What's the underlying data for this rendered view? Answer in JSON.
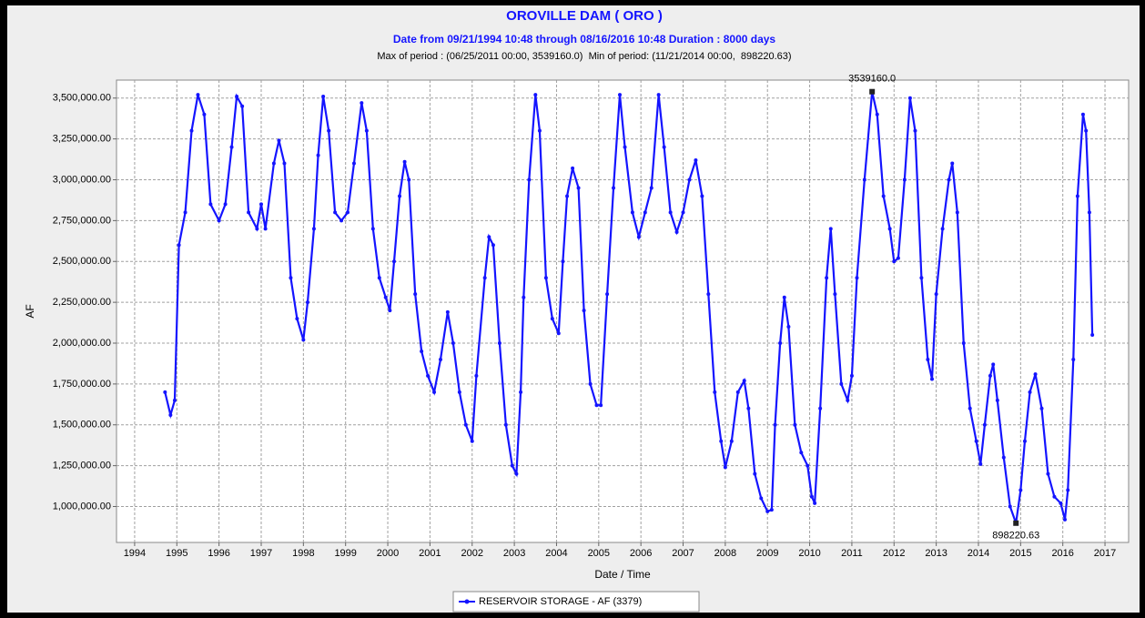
{
  "chart_data": {
    "type": "line",
    "title": "OROVILLE DAM ( ORO )",
    "subtitle": "Date from 09/21/1994 10:48 through 08/16/2016 10:48 Duration : 8000 days",
    "note": "Max of period : (06/25/2011 00:00, 3539160.0)  Min of period: (11/21/2014 00:00,  898220.63)",
    "x_label": "Date / Time",
    "y_label": "AF",
    "xlim": [
      1993.57,
      2017.56
    ],
    "xticks": [
      1994,
      1995,
      1996,
      1997,
      1998,
      1999,
      2000,
      2001,
      2002,
      2003,
      2004,
      2005,
      2006,
      2007,
      2008,
      2009,
      2010,
      2011,
      2012,
      2013,
      2014,
      2015,
      2016,
      2017
    ],
    "ylim": [
      780000,
      3610000
    ],
    "yticks": [
      {
        "value": 1000000,
        "label": "1,000,000.00"
      },
      {
        "value": 1250000,
        "label": "1,250,000.00"
      },
      {
        "value": 1500000,
        "label": "1,500,000.00"
      },
      {
        "value": 1750000,
        "label": "1,750,000.00"
      },
      {
        "value": 2000000,
        "label": "2,000,000.00"
      },
      {
        "value": 2250000,
        "label": "2,250,000.00"
      },
      {
        "value": 2500000,
        "label": "2,500,000.00"
      },
      {
        "value": 2750000,
        "label": "2,750,000.00"
      },
      {
        "value": 3000000,
        "label": "3,000,000.00"
      },
      {
        "value": 3250000,
        "label": "3,250,000.00"
      },
      {
        "value": 3500000,
        "label": "3,500,000.00"
      }
    ],
    "grid": true,
    "legend": "bottom",
    "annotations": [
      {
        "text": "3539160.0",
        "x": 2011.48,
        "y": 3539160
      },
      {
        "text": "898220.63",
        "x": 2014.89,
        "y": 898220.63
      }
    ],
    "x": [
      1994.72,
      1994.85,
      1994.95,
      1995.05,
      1995.2,
      1995.35,
      1995.5,
      1995.65,
      1995.8,
      1996.0,
      1996.15,
      1996.3,
      1996.42,
      1996.55,
      1996.7,
      1996.9,
      1997.0,
      1997.1,
      1997.3,
      1997.42,
      1997.55,
      1997.7,
      1997.85,
      1998.0,
      1998.1,
      1998.25,
      1998.35,
      1998.47,
      1998.6,
      1998.75,
      1998.9,
      1999.05,
      1999.2,
      1999.38,
      1999.5,
      1999.65,
      1999.8,
      1999.95,
      2000.05,
      2000.15,
      2000.28,
      2000.4,
      2000.5,
      2000.65,
      2000.8,
      2000.95,
      2001.1,
      2001.25,
      2001.42,
      2001.55,
      2001.7,
      2001.85,
      2002.0,
      2002.1,
      2002.3,
      2002.4,
      2002.5,
      2002.65,
      2002.8,
      2002.95,
      2003.05,
      2003.15,
      2003.22,
      2003.35,
      2003.5,
      2003.6,
      2003.75,
      2003.9,
      2004.05,
      2004.15,
      2004.25,
      2004.38,
      2004.52,
      2004.65,
      2004.8,
      2004.95,
      2005.05,
      2005.2,
      2005.35,
      2005.5,
      2005.62,
      2005.8,
      2005.95,
      2006.1,
      2006.25,
      2006.42,
      2006.55,
      2006.7,
      2006.85,
      2007.0,
      2007.15,
      2007.3,
      2007.45,
      2007.6,
      2007.75,
      2007.9,
      2008.0,
      2008.15,
      2008.3,
      2008.45,
      2008.55,
      2008.7,
      2008.85,
      2009.0,
      2009.1,
      2009.18,
      2009.3,
      2009.4,
      2009.5,
      2009.65,
      2009.8,
      2009.95,
      2010.05,
      2010.12,
      2010.25,
      2010.4,
      2010.5,
      2010.6,
      2010.75,
      2010.9,
      2011.0,
      2011.12,
      2011.3,
      2011.48,
      2011.6,
      2011.75,
      2011.9,
      2012.0,
      2012.1,
      2012.25,
      2012.38,
      2012.5,
      2012.65,
      2012.8,
      2012.9,
      2013.0,
      2013.15,
      2013.3,
      2013.38,
      2013.5,
      2013.65,
      2013.8,
      2013.95,
      2014.05,
      2014.15,
      2014.28,
      2014.35,
      2014.45,
      2014.6,
      2014.75,
      2014.89,
      2015.0,
      2015.1,
      2015.22,
      2015.35,
      2015.5,
      2015.65,
      2015.8,
      2015.95,
      2016.05,
      2016.12,
      2016.25,
      2016.35,
      2016.48,
      2016.55,
      2016.63,
      2016.7
    ],
    "series": [
      {
        "name": "RESERVOIR STORAGE - AF (3379)",
        "color": "#1414ff",
        "values": [
          1700000,
          1560000,
          1650000,
          2600000,
          2800000,
          3300000,
          3520000,
          3400000,
          2850000,
          2750000,
          2850000,
          3200000,
          3510000,
          3450000,
          2800000,
          2700000,
          2850000,
          2700000,
          3100000,
          3240000,
          3100000,
          2400000,
          2150000,
          2020000,
          2250000,
          2700000,
          3150000,
          3510000,
          3300000,
          2800000,
          2750000,
          2800000,
          3100000,
          3470000,
          3300000,
          2700000,
          2400000,
          2280000,
          2200000,
          2500000,
          2900000,
          3110000,
          3000000,
          2300000,
          1950000,
          1800000,
          1700000,
          1900000,
          2190000,
          2000000,
          1700000,
          1500000,
          1400000,
          1800000,
          2400000,
          2650000,
          2600000,
          2000000,
          1500000,
          1250000,
          1200000,
          1700000,
          2280000,
          3000000,
          3520000,
          3300000,
          2400000,
          2150000,
          2060000,
          2500000,
          2900000,
          3070000,
          2950000,
          2200000,
          1750000,
          1620000,
          1620000,
          2300000,
          2950000,
          3520000,
          3200000,
          2800000,
          2650000,
          2800000,
          2950000,
          3520000,
          3200000,
          2800000,
          2680000,
          2800000,
          3000000,
          3120000,
          2900000,
          2300000,
          1700000,
          1400000,
          1240000,
          1400000,
          1700000,
          1770000,
          1600000,
          1200000,
          1050000,
          970000,
          980000,
          1500000,
          2000000,
          2280000,
          2100000,
          1500000,
          1330000,
          1250000,
          1060000,
          1020000,
          1600000,
          2400000,
          2700000,
          2300000,
          1750000,
          1650000,
          1800000,
          2400000,
          3000000,
          3539160,
          3400000,
          2900000,
          2700000,
          2500000,
          2520000,
          3000000,
          3500000,
          3300000,
          2400000,
          1900000,
          1780000,
          2300000,
          2700000,
          3000000,
          3100000,
          2800000,
          2000000,
          1600000,
          1400000,
          1260000,
          1500000,
          1800000,
          1870000,
          1650000,
          1300000,
          1000000,
          898220.63,
          1100000,
          1400000,
          1700000,
          1810000,
          1600000,
          1200000,
          1060000,
          1020000,
          920000,
          1100000,
          1900000,
          2900000,
          3400000,
          3300000,
          2800000,
          2050000
        ]
      }
    ]
  }
}
